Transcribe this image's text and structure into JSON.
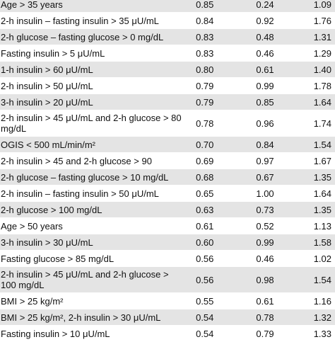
{
  "table": {
    "rows": [
      [
        "Age > 35 years",
        "0.85",
        "0.24",
        "1.09"
      ],
      [
        "2-h insulin – fasting insulin > 35 μU/mL",
        "0.84",
        "0.92",
        "1.76"
      ],
      [
        "2-h glucose – fasting glucose > 0 mg/dL",
        "0.83",
        "0.48",
        "1.31"
      ],
      [
        "Fasting insulin > 5 μU/mL",
        "0.83",
        "0.46",
        "1.29"
      ],
      [
        "1-h insulin > 60 μU/mL",
        "0.80",
        "0.61",
        "1.40"
      ],
      [
        "2-h insulin > 50 μU/mL",
        "0.79",
        "0.99",
        "1.78"
      ],
      [
        "3-h insulin > 20 μU/mL",
        "0.79",
        "0.85",
        "1.64"
      ],
      [
        "2-h insulin > 45 μU/mL and 2-h glucose > 80 mg/dL",
        "0.78",
        "0.96",
        "1.74"
      ],
      [
        "OGIS < 500 mL/min/m²",
        "0.70",
        "0.84",
        "1.54"
      ],
      [
        "2-h insulin > 45 and 2-h glucose > 90",
        "0.69",
        "0.97",
        "1.67"
      ],
      [
        "2-h glucose – fasting glucose > 10 mg/dL",
        "0.68",
        "0.67",
        "1.35"
      ],
      [
        "2-h insulin – fasting insulin > 50 μU/mL",
        "0.65",
        "1.00",
        "1.64"
      ],
      [
        "2-h glucose > 100 mg/dL",
        "0.63",
        "0.73",
        "1.35"
      ],
      [
        "Age > 50 years",
        "0.61",
        "0.52",
        "1.13"
      ],
      [
        "3-h insulin > 30 μU/mL",
        "0.60",
        "0.99",
        "1.58"
      ],
      [
        "Fasting glucose > 85 mg/dL",
        "0.56",
        "0.46",
        "1.02"
      ],
      [
        "2-h insulin > 45 μU/mL and 2-h glucose > 100 mg/dL",
        "0.56",
        "0.98",
        "1.54"
      ],
      [
        "BMI > 25 kg/m²",
        "0.55",
        "0.61",
        "1.16"
      ],
      [
        "BMI > 25 kg/m², 2-h insulin > 30 μU/mL",
        "0.54",
        "0.78",
        "1.32"
      ],
      [
        "Fasting insulin > 10 μU/mL",
        "0.54",
        "0.79",
        "1.33"
      ]
    ]
  }
}
